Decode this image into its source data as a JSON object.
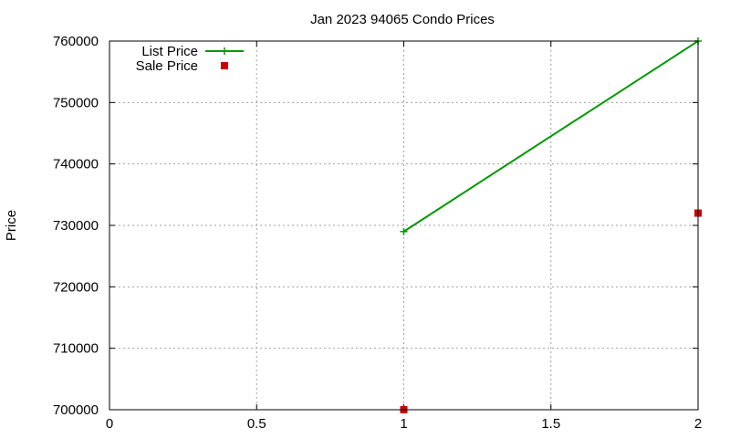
{
  "chart_data": {
    "type": "line",
    "title": "Jan 2023 94065 Condo Prices",
    "xlabel": "",
    "ylabel": "Price",
    "xlim": [
      0,
      2
    ],
    "ylim": [
      700000,
      760000
    ],
    "x_ticks": [
      "0",
      "0.5",
      "1",
      "1.5",
      "2"
    ],
    "x_tick_values": [
      0,
      0.5,
      1,
      1.5,
      2
    ],
    "y_ticks": [
      "700000",
      "710000",
      "720000",
      "730000",
      "740000",
      "750000",
      "760000"
    ],
    "y_tick_values": [
      700000,
      710000,
      720000,
      730000,
      740000,
      750000,
      760000
    ],
    "grid": true,
    "legend_position": "top-left",
    "series": [
      {
        "name": "List Price",
        "style": "lines-and-points",
        "marker": "plus",
        "color": "#009900",
        "x": [
          1,
          2
        ],
        "values": [
          729000,
          760000
        ]
      },
      {
        "name": "Sale Price",
        "style": "points",
        "marker": "square",
        "color": "#cc0000",
        "x": [
          1,
          2
        ],
        "values": [
          700000,
          732000
        ]
      }
    ]
  }
}
